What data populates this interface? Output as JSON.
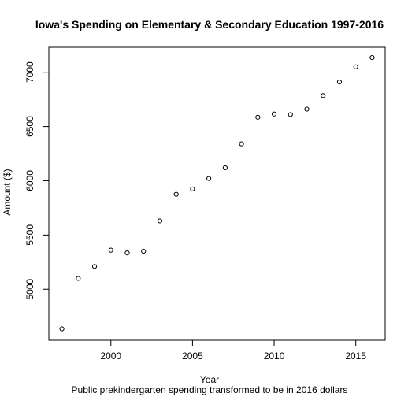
{
  "chart_data": {
    "type": "scatter",
    "title": "Iowa's Spending on Elementary & Secondary Education 1997-2016",
    "xlabel": "Year",
    "ylabel": "Amount ($)",
    "subtitle": "Public prekindergarten spending transformed to be in 2016 dollars",
    "xlim": [
      1996.2,
      2016.8
    ],
    "ylim": [
      4530,
      7230
    ],
    "x_ticks": [
      2000,
      2005,
      2010,
      2015
    ],
    "y_ticks": [
      5000,
      5500,
      6000,
      6500,
      7000
    ],
    "x": [
      1997,
      1998,
      1999,
      2000,
      2001,
      2002,
      2003,
      2004,
      2005,
      2006,
      2007,
      2008,
      2009,
      2010,
      2011,
      2012,
      2013,
      2014,
      2015,
      2016
    ],
    "y": [
      4635,
      5100,
      5210,
      5360,
      5335,
      5350,
      5630,
      5875,
      5925,
      6020,
      6120,
      6340,
      6585,
      6615,
      6610,
      6660,
      6785,
      6910,
      7050,
      7135
    ]
  }
}
